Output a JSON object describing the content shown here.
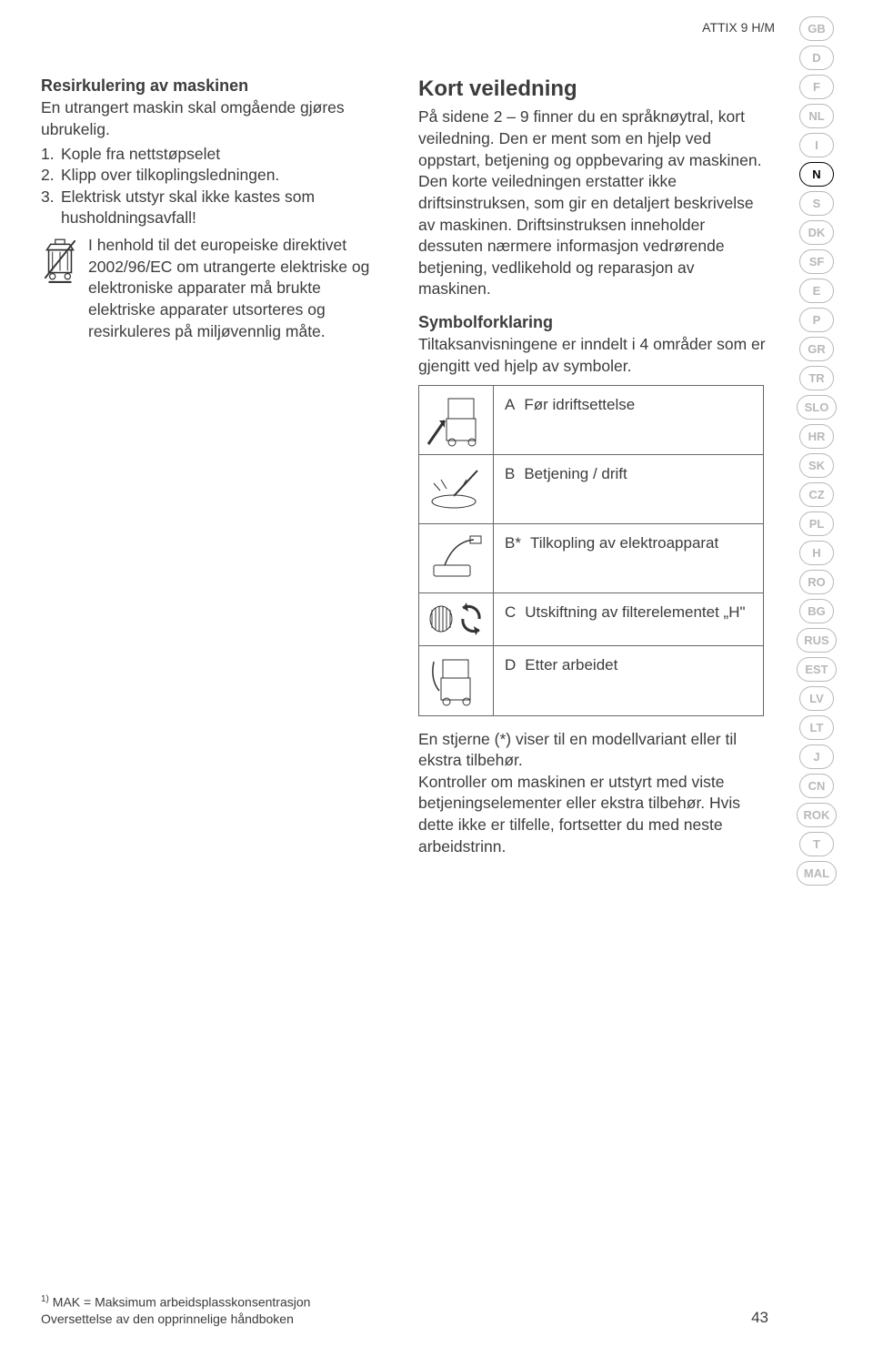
{
  "header": {
    "model": "ATTIX 9 H/M"
  },
  "leftCol": {
    "title": "Resirkulering av maskinen",
    "intro": "En utrangert maskin skal omgående gjøres ubrukelig.",
    "steps": [
      "Kople fra nettstøpselet",
      "Klipp over tilkoplingsledningen.",
      "Elektrisk utstyr skal ikke kastes som husholdningsavfall!"
    ],
    "weee": "I henhold til det europeiske direktivet 2002/96/EC om utrangerte elektriske og elektroniske apparater må brukte elektriske apparater utsorteres og resirkuleres på miljøvennlig måte."
  },
  "rightCol": {
    "title": "Kort veiledning",
    "p1": "På sidene 2 – 9 finner du en språknøytral, kort veiledning. Den er ment som en hjelp ved oppstart, betjening og oppbevaring av maskinen.",
    "p2": "Den korte veiledningen erstatter ikke driftsinstruksen, som gir en detaljert beskrivelse av maskinen. Driftsinstruksen inneholder dessuten nærmere informasjon vedrørende betjening, vedlikehold og reparasjon av maskinen.",
    "symTitle": "Symbolforklaring",
    "symIntro": "Tiltaksanvisningene er inndelt i 4 områder som er gjengitt ved hjelp av symboler.",
    "symbols": [
      {
        "letter": "A",
        "text": "Før idriftsettelse"
      },
      {
        "letter": "B",
        "text": "Betjening / drift"
      },
      {
        "letter": "B*",
        "text": "Tilkopling av elektroapparat"
      },
      {
        "letter": "C",
        "text": "Utskiftning av filterelementet „H\""
      },
      {
        "letter": "D",
        "text": "Etter arbeidet"
      }
    ],
    "after": "En stjerne (*) viser til en modellvariant eller til ekstra tilbehør.\nKontroller om maskinen er utstyrt med viste betjeningselementer eller ekstra tilbehør. Hvis dette ikke er tilfelle, fortsetter du med neste arbeidstrinn."
  },
  "languages": [
    {
      "code": "GB",
      "active": false
    },
    {
      "code": "D",
      "active": false
    },
    {
      "code": "F",
      "active": false
    },
    {
      "code": "NL",
      "active": false
    },
    {
      "code": "I",
      "active": false
    },
    {
      "code": "N",
      "active": true
    },
    {
      "code": "S",
      "active": false
    },
    {
      "code": "DK",
      "active": false
    },
    {
      "code": "SF",
      "active": false
    },
    {
      "code": "E",
      "active": false
    },
    {
      "code": "P",
      "active": false
    },
    {
      "code": "GR",
      "active": false
    },
    {
      "code": "TR",
      "active": false
    },
    {
      "code": "SLO",
      "active": false,
      "wide": true
    },
    {
      "code": "HR",
      "active": false
    },
    {
      "code": "SK",
      "active": false
    },
    {
      "code": "CZ",
      "active": false
    },
    {
      "code": "PL",
      "active": false
    },
    {
      "code": "H",
      "active": false
    },
    {
      "code": "RO",
      "active": false
    },
    {
      "code": "BG",
      "active": false
    },
    {
      "code": "RUS",
      "active": false,
      "wide": true
    },
    {
      "code": "EST",
      "active": false,
      "wide": true
    },
    {
      "code": "LV",
      "active": false
    },
    {
      "code": "LT",
      "active": false
    },
    {
      "code": "J",
      "active": false
    },
    {
      "code": "CN",
      "active": false
    },
    {
      "code": "ROK",
      "active": false,
      "wide": true
    },
    {
      "code": "T",
      "active": false
    },
    {
      "code": "MAL",
      "active": false,
      "wide": true
    }
  ],
  "footer": {
    "note1": "MAK = Maksimum arbeidsplasskonsentrasjon",
    "note2": "Oversettelse av den opprinnelige håndboken",
    "pageNum": "43"
  }
}
